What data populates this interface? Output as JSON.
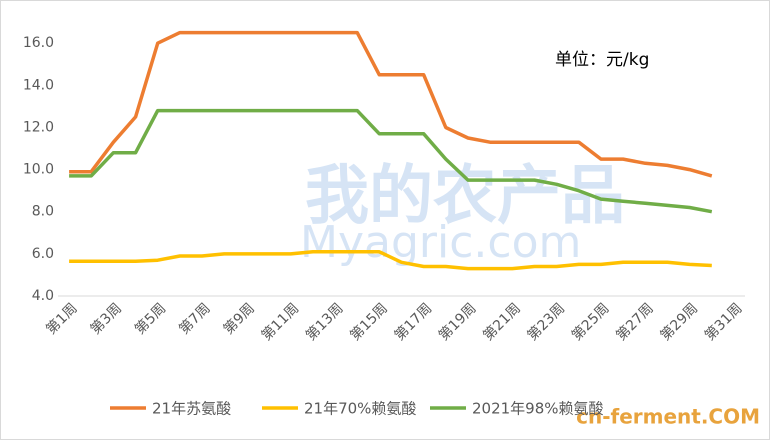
{
  "chart_data": {
    "type": "line",
    "annotation": "单位：元/kg",
    "watermarks": [
      "我的农产品",
      "Myagric.com",
      "cn-ferment.COM"
    ],
    "categories": [
      "第1周",
      null,
      "第3周",
      null,
      "第5周",
      null,
      "第7周",
      null,
      "第9周",
      null,
      "第11周",
      null,
      "第13周",
      null,
      "第15周",
      null,
      "第17周",
      null,
      "第19周",
      null,
      "第21周",
      null,
      "第23周",
      null,
      "第25周",
      null,
      "第27周",
      null,
      "第29周",
      null,
      "第31周"
    ],
    "series": [
      {
        "name": "21年苏氨酸",
        "color": "#ed7d31",
        "values": [
          9.9,
          9.9,
          11.3,
          12.5,
          16.0,
          16.5,
          16.5,
          16.5,
          16.5,
          16.5,
          16.5,
          16.5,
          16.5,
          16.5,
          14.5,
          14.5,
          14.5,
          12.0,
          11.5,
          11.3,
          11.3,
          11.3,
          11.3,
          11.3,
          10.5,
          10.5,
          10.3,
          10.2,
          10.0,
          9.7,
          null
        ]
      },
      {
        "name": "21年70%赖氨酸",
        "color": "#ffc000",
        "values": [
          5.65,
          5.65,
          5.65,
          5.65,
          5.7,
          5.9,
          5.9,
          6.0,
          6.0,
          6.0,
          6.0,
          6.1,
          6.1,
          6.1,
          6.1,
          5.6,
          5.4,
          5.4,
          5.3,
          5.3,
          5.3,
          5.4,
          5.4,
          5.5,
          5.5,
          5.6,
          5.6,
          5.6,
          5.5,
          5.45,
          null
        ]
      },
      {
        "name": "2021年98%赖氨酸",
        "color": "#70ad47",
        "values": [
          9.7,
          9.7,
          10.8,
          10.8,
          12.8,
          12.8,
          12.8,
          12.8,
          12.8,
          12.8,
          12.8,
          12.8,
          12.8,
          12.8,
          11.7,
          11.7,
          11.7,
          10.5,
          9.5,
          9.5,
          9.5,
          9.5,
          9.3,
          9.0,
          8.6,
          8.5,
          8.4,
          8.3,
          8.2,
          8.0,
          null
        ]
      }
    ],
    "ylim": [
      4,
      17.1
    ],
    "yticks": [
      {
        "value": 4,
        "label": "4.0"
      },
      {
        "value": 6,
        "label": "6.0"
      },
      {
        "value": 8,
        "label": "8.0"
      },
      {
        "value": 10,
        "label": "10.0"
      },
      {
        "value": 12,
        "label": "12.0"
      },
      {
        "value": 14,
        "label": "14.0"
      },
      {
        "value": 16,
        "label": "16.0"
      }
    ],
    "grid": false,
    "legend": "bottom"
  }
}
